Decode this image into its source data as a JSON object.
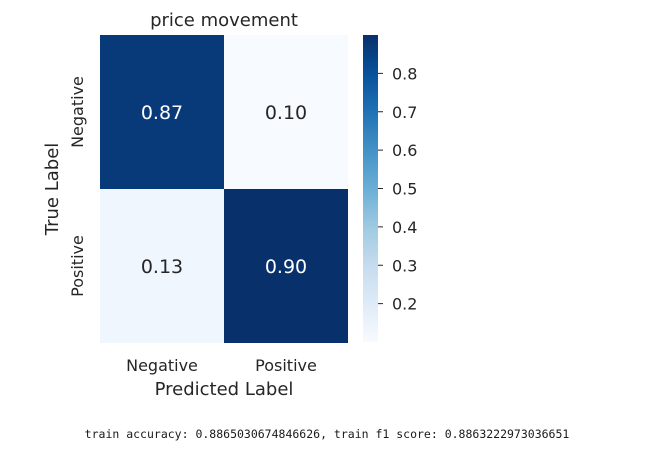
{
  "chart_data": {
    "type": "heatmap",
    "title": "price movement",
    "xlabel": "Predicted Label",
    "ylabel": "True Label",
    "x_categories": [
      "Negative",
      "Positive"
    ],
    "y_categories": [
      "Negative",
      "Positive"
    ],
    "values": [
      [
        0.87,
        0.1
      ],
      [
        0.13,
        0.9
      ]
    ],
    "cell_labels": [
      [
        "0.87",
        "0.10"
      ],
      [
        "0.13",
        "0.90"
      ]
    ],
    "colormap": "Blues",
    "vmin": 0.1,
    "vmax": 0.9,
    "colorbar_ticks": [
      "0.8",
      "0.7",
      "0.6",
      "0.5",
      "0.4",
      "0.3",
      "0.2"
    ],
    "colorbar_tick_values": [
      0.8,
      0.7,
      0.6,
      0.5,
      0.4,
      0.3,
      0.2
    ]
  },
  "footer": {
    "text": "train accuracy: 0.8865030674846626, train f1 score: 0.8863222973036651"
  }
}
